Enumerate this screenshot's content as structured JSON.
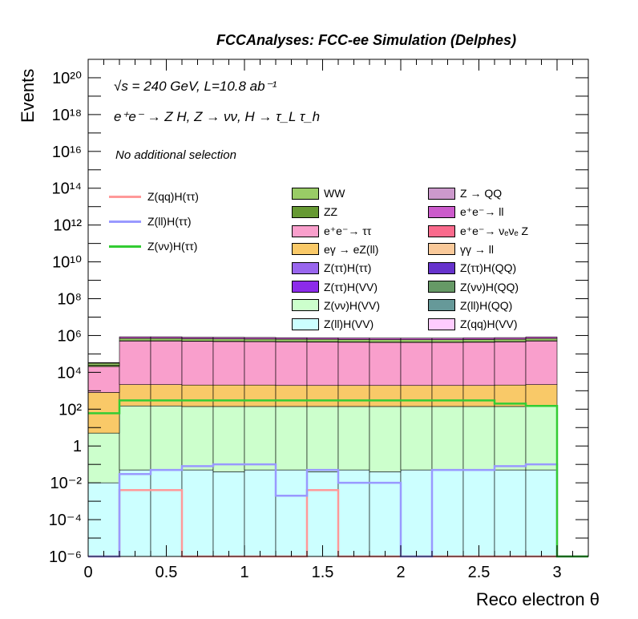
{
  "title": "FCCAnalyses: FCC-ee Simulation (Delphes)",
  "annotations": {
    "energy": "√s = 240 GeV, L=10.8 ab⁻¹",
    "process": "e⁺e⁻ → Z H, Z → νν, H → τ_L τ_h",
    "selection": "No additional selection"
  },
  "colors": {
    "WW": "#99cc66",
    "ZZ": "#669933",
    "ee_tautau": "#f99fcc",
    "egamma_eZll": "#f9c968",
    "Ztautau_Htautau": "#9966ee",
    "Ztautau_HVV": "#8c2bea",
    "Znunu_HVV": "#ccffcc",
    "Zll_HVV": "#ccffff",
    "Z_QQ": "#cc99cc",
    "ee_ll": "#cc5bcc",
    "ee_nunuZ": "#f96a8c",
    "gammagamma_ll": "#f9c99a",
    "Ztautau_HQQ": "#6633cc",
    "Znunu_HQQ": "#669966",
    "Zll_HQQ": "#669999",
    "Zqq_HVV": "#ffccff",
    "sig_qq": "#ff9999",
    "sig_ll": "#9999ff",
    "sig_nunu": "#33cc33"
  },
  "chart_data": {
    "type": "bar",
    "style": "stacked histogram with signal line overlays",
    "xlabel": "Reco electron θ",
    "ylabel": "Events",
    "xlim": [
      0,
      3.2
    ],
    "ylim": [
      1e-06,
      1e+21
    ],
    "log_y": true,
    "grid": false,
    "x_ticks": [
      "0",
      "0.5",
      "1",
      "1.5",
      "2",
      "2.5",
      "3"
    ],
    "y_ticks": [
      "10⁻⁶",
      "10⁻⁴",
      "10⁻²",
      "1",
      "10²",
      "10⁴",
      "10⁶",
      "10⁸",
      "10¹⁰",
      "10¹²",
      "10¹⁴",
      "10¹⁶",
      "10¹⁸",
      "10²⁰"
    ],
    "bin_edges": [
      0,
      0.2,
      0.4,
      0.6,
      0.8,
      1.0,
      1.2,
      1.4,
      1.6,
      1.8,
      2.0,
      2.2,
      2.4,
      2.6,
      2.8,
      3.0,
      3.2
    ],
    "stack_order": [
      "Zll_HVV",
      "Znunu_HVV",
      "egamma_eZll",
      "ee_tautau",
      "ZZ",
      "WW",
      "ee_ll",
      "Z_QQ",
      "Zqq_HVV",
      "Zll_HQQ",
      "Znunu_HQQ",
      "Ztautau_HQQ",
      "gammagamma_ll",
      "ee_nunuZ",
      "Ztautau_HVV",
      "Ztautau_Htautau"
    ],
    "backgrounds": [
      {
        "key": "WW",
        "name": "WW",
        "values": [
          7000,
          180000,
          180000,
          170000,
          170000,
          165000,
          165000,
          165000,
          160000,
          160000,
          155000,
          155000,
          160000,
          160000,
          170000,
          0
        ]
      },
      {
        "key": "ZZ",
        "name": "ZZ",
        "values": [
          3500,
          18000,
          18000,
          17000,
          17000,
          16000,
          16000,
          16000,
          15000,
          15000,
          15000,
          15000,
          15500,
          16000,
          17000,
          0
        ]
      },
      {
        "key": "ee_tautau",
        "name": "e⁺e⁻→ ττ",
        "values": [
          20000,
          500000,
          500000,
          480000,
          470000,
          460000,
          450000,
          440000,
          430000,
          420000,
          420000,
          420000,
          430000,
          450000,
          500000,
          0
        ]
      },
      {
        "key": "egamma_eZll",
        "name": "eγ → eZ(ll)",
        "values": [
          800,
          2000,
          2000,
          1900,
          1900,
          1900,
          1800,
          1800,
          1800,
          1800,
          1800,
          1800,
          1800,
          1900,
          2000,
          0
        ]
      },
      {
        "key": "Ztautau_Htautau",
        "name": "Z(ττ)H(ττ)",
        "values": [
          0.05,
          0.2,
          0.2,
          0.2,
          0.2,
          0.2,
          0.2,
          0.2,
          0.2,
          0.2,
          0.2,
          0.2,
          0.2,
          0.2,
          0.2,
          0
        ]
      },
      {
        "key": "Ztautau_HVV",
        "name": "Z(ττ)H(VV)",
        "values": [
          0.03,
          0.15,
          0.15,
          0.15,
          0.15,
          0.15,
          0.15,
          0.15,
          0.15,
          0.15,
          0.15,
          0.15,
          0.15,
          0.15,
          0.15,
          0
        ]
      },
      {
        "key": "Znunu_HVV",
        "name": "Z(νν)H(VV)",
        "values": [
          5,
          150,
          150,
          140,
          140,
          140,
          140,
          140,
          140,
          140,
          140,
          140,
          140,
          140,
          150,
          0
        ]
      },
      {
        "key": "Zll_HVV",
        "name": "Z(ll)H(VV)",
        "values": [
          0.01,
          0.05,
          0.05,
          0.05,
          0.04,
          0.05,
          0.05,
          0.04,
          0.05,
          0.04,
          0.05,
          0.05,
          0.05,
          0.05,
          0.05,
          0
        ]
      },
      {
        "key": "Z_QQ",
        "name": "Z → QQ",
        "values": [
          2000,
          3500,
          3500,
          3400,
          3400,
          3300,
          3300,
          3300,
          3200,
          3200,
          3200,
          3300,
          3300,
          3400,
          3500,
          0
        ]
      },
      {
        "key": "ee_ll",
        "name": "e⁺e⁻→ ll",
        "values": [
          600,
          150000,
          150000,
          140000,
          140000,
          140000,
          130000,
          130000,
          130000,
          130000,
          130000,
          130000,
          140000,
          140000,
          150000,
          0
        ]
      },
      {
        "key": "ee_nunuZ",
        "name": "e⁺e⁻→ νₑνₑ Z",
        "values": [
          20,
          200,
          200,
          190,
          190,
          190,
          180,
          180,
          180,
          180,
          180,
          180,
          180,
          190,
          200,
          0
        ]
      },
      {
        "key": "gammagamma_ll",
        "name": "γγ → ll",
        "values": [
          500,
          900,
          900,
          880,
          860,
          850,
          850,
          840,
          840,
          840,
          840,
          840,
          850,
          860,
          900,
          0
        ]
      },
      {
        "key": "Ztautau_HQQ",
        "name": "Z(ττ)H(QQ)",
        "values": [
          0,
          0,
          0,
          0,
          0.0005,
          0,
          0,
          0,
          0,
          0,
          0,
          0,
          0,
          0,
          0,
          0
        ]
      },
      {
        "key": "Znunu_HQQ",
        "name": "Z(νν)H(QQ)",
        "values": [
          0,
          0.015,
          0,
          0,
          0,
          0,
          0,
          0,
          0,
          0,
          0,
          0,
          0,
          0.2,
          0,
          0
        ]
      },
      {
        "key": "Zll_HQQ",
        "name": "Z(ll)H(QQ)",
        "values": [
          0,
          0,
          0,
          0,
          0,
          0,
          0.006,
          0,
          0,
          0,
          0,
          0,
          0,
          0,
          0,
          0
        ]
      },
      {
        "key": "Zqq_HVV",
        "name": "Z(qq)H(VV)",
        "values": [
          0,
          0,
          0,
          0,
          0,
          0.01,
          0,
          0,
          0,
          0,
          0,
          0,
          0,
          0,
          0,
          0
        ]
      }
    ],
    "signals": [
      {
        "key": "sig_qq",
        "name": "Z(qq)H(ττ)",
        "values": [
          1e-06,
          0.004,
          0.004,
          1e-06,
          1e-06,
          1e-06,
          1e-06,
          0.004,
          1e-06,
          1e-06,
          1e-06,
          1e-06,
          1e-06,
          1e-06,
          1e-06,
          1e-06
        ]
      },
      {
        "key": "sig_ll",
        "name": "Z(ll)H(ττ)",
        "values": [
          1e-06,
          0.03,
          0.05,
          0.08,
          0.1,
          0.1,
          0.002,
          0.05,
          0.01,
          0.01,
          1e-06,
          0.05,
          0.05,
          0.08,
          0.1,
          1e-06
        ]
      },
      {
        "key": "sig_nunu",
        "name": "Z(νν)H(ττ)",
        "values": [
          60,
          300,
          300,
          300,
          300,
          300,
          300,
          300,
          300,
          300,
          300,
          300,
          300,
          200,
          150,
          1e-06
        ]
      }
    ],
    "legend_placement": "center"
  }
}
